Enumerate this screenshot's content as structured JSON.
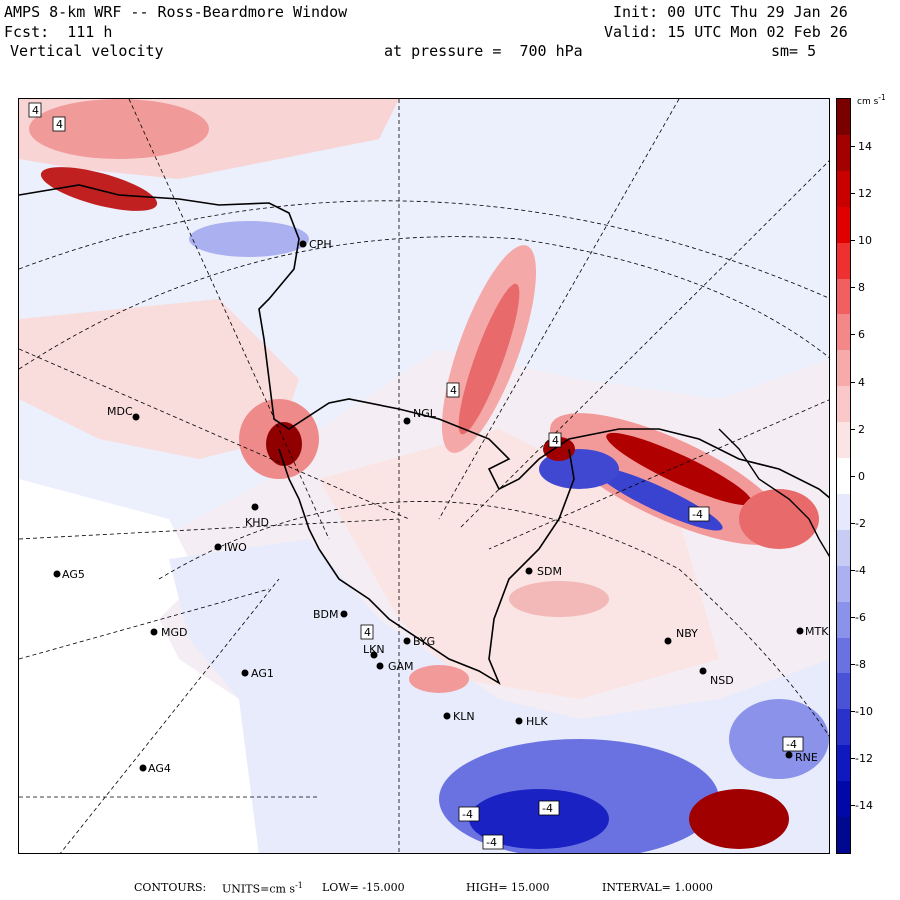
{
  "header": {
    "title": "AMPS 8-km WRF -- Ross-Beardmore Window",
    "forecast": "Fcst:  111 h",
    "field": "Vertical velocity",
    "level": "at pressure =  700 hPa",
    "init": "Init: 00 UTC Thu 29 Jan 26",
    "valid": "Valid: 15 UTC Mon 02 Feb 26",
    "smoothing": "sm= 5"
  },
  "colorbar": {
    "units": "cm s",
    "units_exp": "-1",
    "ticks": [
      "14",
      "12",
      "10",
      "8",
      "6",
      "4",
      "2",
      "0",
      "-2",
      "-4",
      "-6",
      "-8",
      "-10",
      "-12",
      "-14"
    ],
    "colors": [
      "#7a0000",
      "#a30000",
      "#c80000",
      "#e00000",
      "#ee3030",
      "#f06060",
      "#f48888",
      "#f7aaaa",
      "#fac8c8",
      "#fde4e4",
      "#ffffff",
      "#e6e8fb",
      "#c8ccf5",
      "#aab0f0",
      "#8a92ea",
      "#6a72e2",
      "#4a52d8",
      "#2a32cc",
      "#1018c0",
      "#0008a8",
      "#000890"
    ]
  },
  "footer": {
    "contours_label": "CONTOURS:",
    "units_label": "UNITS=cm s",
    "units_exp": "-1",
    "low_label": "LOW=",
    "low_value": "-15.000",
    "high_label": "HIGH=",
    "high_value": "15.000",
    "interval_label": "INTERVAL=",
    "interval_value": "1.0000"
  },
  "stations": [
    "MDC",
    "NGL",
    "IWO",
    "AG5",
    "MGD",
    "AG1",
    "AG4",
    "BDM",
    "SDM",
    "NBY",
    "NSD",
    "MTK",
    "KLN",
    "HLK",
    "GAM",
    "LKN",
    "CPH",
    "KHD",
    "BYG",
    "RNE"
  ],
  "contour_labels": [
    "4",
    "4",
    "4",
    "4",
    "4",
    "-4",
    "-4",
    "-4",
    "-4",
    "-4"
  ],
  "colors": {
    "positive": "#f6b4b4",
    "negative": "#b8bef2",
    "neutral": "#eef0fb",
    "missing": "#ffffff"
  }
}
